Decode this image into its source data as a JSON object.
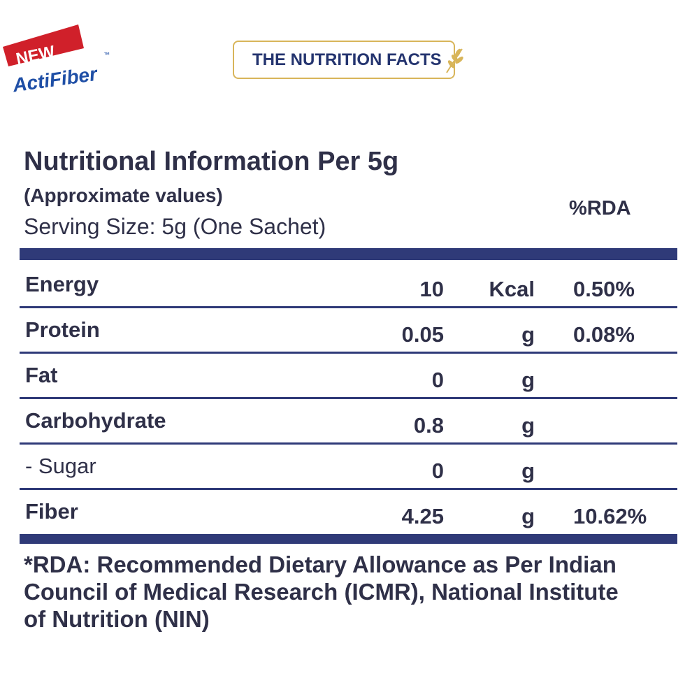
{
  "logo": {
    "badge": "NEW",
    "brand": "ActiFiber",
    "trademark": "™"
  },
  "header": {
    "title": "THE NUTRITION FACTS"
  },
  "panel": {
    "title": "Nutritional Information Per 5g",
    "subtitle": "(Approximate values)",
    "serving": "Serving Size: 5g (One Sachet)",
    "rda_header": "%RDA"
  },
  "table": {
    "rows": [
      {
        "name": "Energy",
        "amount": "10",
        "unit": "Kcal",
        "rda": "0.50%"
      },
      {
        "name": "Protein",
        "amount": "0.05",
        "unit": "g",
        "rda": "0.08%"
      },
      {
        "name": "Fat",
        "amount": "0",
        "unit": "g"
      },
      {
        "name": "Carbohydrate",
        "amount": "0.8",
        "unit": "g"
      },
      {
        "name": "- Sugar",
        "amount": "0",
        "unit": "g"
      },
      {
        "name": "Fiber",
        "amount": "4.25",
        "unit": "g",
        "rda": "10.62%"
      }
    ]
  },
  "footnote": "*RDA: Recommended Dietary Allowance as Per Indian Council of Medical Research (ICMR), National Institute of Nutrition (NIN)"
}
